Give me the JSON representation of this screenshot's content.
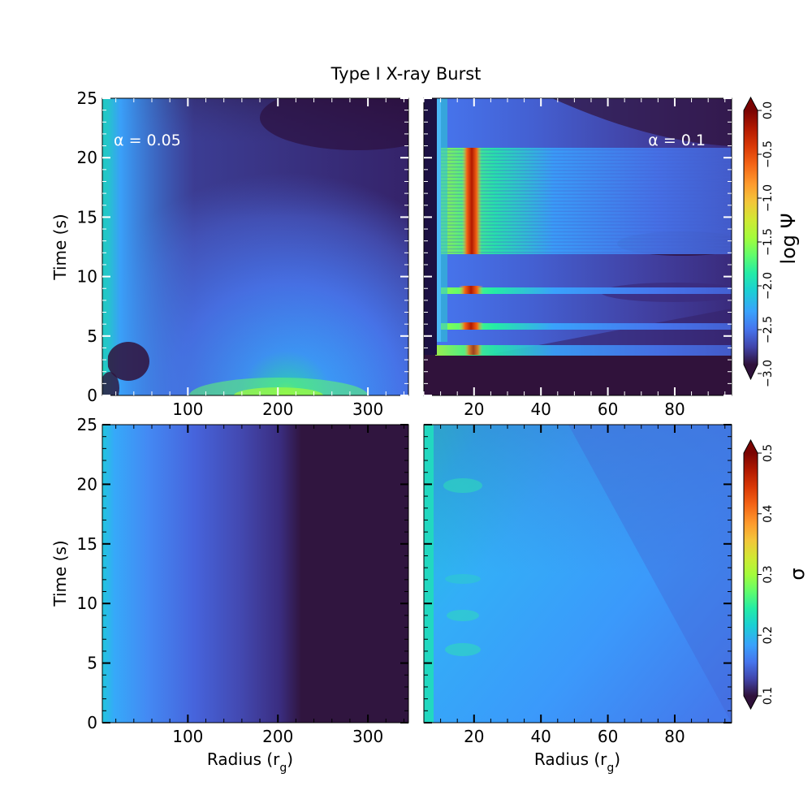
{
  "figure": {
    "title": "Type I X-ray Burst"
  },
  "chart_data": [
    {
      "type": "heatmap",
      "panel": "top-left",
      "annotation": "α = 0.05",
      "xlabel": "",
      "ylabel": "Time (s)",
      "xlim": [
        5,
        345
      ],
      "ylim": [
        0,
        25
      ],
      "xticks": [
        "100",
        "200",
        "300"
      ],
      "yticks": [
        "0",
        "5",
        "10",
        "15",
        "20",
        "25"
      ],
      "colorbar": "log Ψ",
      "description_values": {
        "background_level": -2.8,
        "peak_level": -1.6,
        "peak_radius": 215,
        "peak_time": 0.3
      }
    },
    {
      "type": "heatmap",
      "panel": "top-right",
      "annotation": "α = 0.1",
      "xlabel": "",
      "ylabel": "",
      "xlim": [
        5,
        97
      ],
      "ylim": [
        0,
        25
      ],
      "xticks": [
        "20",
        "40",
        "60",
        "80"
      ],
      "yticks": [],
      "colorbar": "log Ψ",
      "bands": [
        {
          "t_start": 3.6,
          "t_end": 4.2,
          "level": -1.6
        },
        {
          "t_start": 5.4,
          "t_end": 6.0,
          "level": -1.6
        },
        {
          "t_start": 8.3,
          "t_end": 9.2,
          "level": -1.5
        },
        {
          "t_start": 11.8,
          "t_end": 20.8,
          "level": -1.6
        }
      ],
      "hot_column_radius": 18
    },
    {
      "type": "heatmap",
      "panel": "bottom-left",
      "annotation": "",
      "xlabel": "Radius (r",
      "xlabel_sub": "g",
      "xlabel_end": ")",
      "ylabel": "Time (s)",
      "xlim": [
        5,
        345
      ],
      "ylim": [
        0,
        25
      ],
      "xticks": [
        "100",
        "200",
        "300"
      ],
      "yticks": [
        "0",
        "5",
        "10",
        "15",
        "20",
        "25"
      ],
      "colorbar": "σ"
    },
    {
      "type": "heatmap",
      "panel": "bottom-right",
      "annotation": "",
      "xlabel": "Radius (r",
      "xlabel_sub": "g",
      "xlabel_end": ")",
      "ylabel": "",
      "xlim": [
        5,
        97
      ],
      "ylim": [
        0,
        25
      ],
      "xticks": [
        "20",
        "40",
        "60",
        "80"
      ],
      "yticks": [],
      "colorbar": "σ"
    }
  ],
  "colorbars": {
    "top": {
      "label": "log Ψ",
      "range": [
        -3.0,
        0.0
      ],
      "ticks": [
        "−3.0",
        "−2.5",
        "−2.0",
        "−1.5",
        "−1.0",
        "−0.5",
        "0.0"
      ],
      "tick_values": [
        -3.0,
        -2.5,
        -2.0,
        -1.5,
        -1.0,
        -0.5,
        0.0
      ]
    },
    "bottom": {
      "label": "σ",
      "range": [
        0.1,
        0.5
      ],
      "ticks": [
        "0.1",
        "0.2",
        "0.3",
        "0.4",
        "0.5"
      ],
      "tick_values": [
        0.1,
        0.2,
        0.3,
        0.4,
        0.5
      ]
    }
  },
  "colormap": [
    "#30123b",
    "#4145ab",
    "#4675ed",
    "#39a2fc",
    "#1bcfd4",
    "#24eca6",
    "#61fc6c",
    "#a4fc3b",
    "#d1e834",
    "#f3c63a",
    "#fe9b2d",
    "#f36315",
    "#d93806",
    "#b11901",
    "#7a0402"
  ]
}
